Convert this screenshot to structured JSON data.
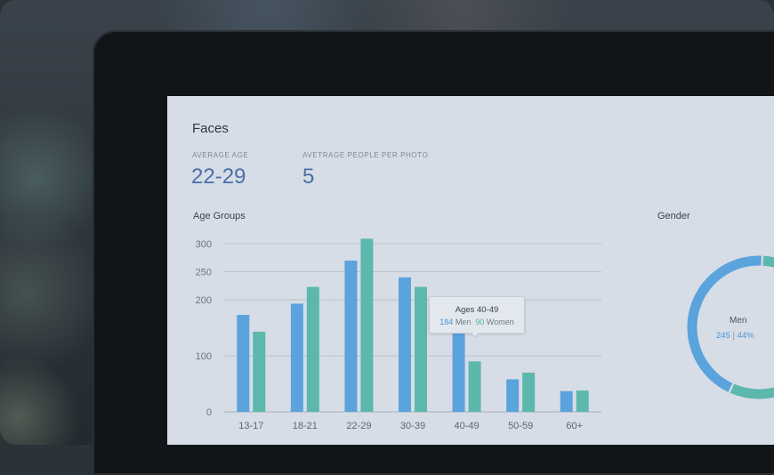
{
  "title": "Faces",
  "stats": [
    {
      "label": "AVERAGE AGE",
      "value": "22-29"
    },
    {
      "label": "AVETRAGE PEOPLE PER PHOTO",
      "value": "5"
    }
  ],
  "age_groups_title": "Age Groups",
  "gender_title": "Gender",
  "colors": {
    "men": "#5ba3dd",
    "women": "#5cb8ac"
  },
  "chart_data": {
    "type": "bar",
    "title": "Age Groups",
    "categories": [
      "13-17",
      "18-21",
      "22-29",
      "30-39",
      "40-49",
      "50-59",
      "60+"
    ],
    "series": [
      {
        "values": [
          173,
          193,
          270,
          240,
          184,
          58,
          37
        ]
      },
      {
        "values": [
          143,
          223,
          309,
          223,
          90,
          70,
          38
        ]
      }
    ],
    "ylim": [
      0,
      300
    ],
    "yticks": [
      0,
      100,
      200,
      250,
      300
    ],
    "grid": true
  },
  "tooltip": {
    "title": "Ages 40-49",
    "men_value": "184",
    "men_label": "Men",
    "women_value": "90",
    "women_label": "Women"
  },
  "gender": {
    "label": "Men",
    "count": "245",
    "sep": "|",
    "percent": "44%",
    "chart_data": {
      "type": "pie",
      "labels": [
        "Men",
        "Women"
      ],
      "values": [
        44,
        56
      ]
    }
  }
}
